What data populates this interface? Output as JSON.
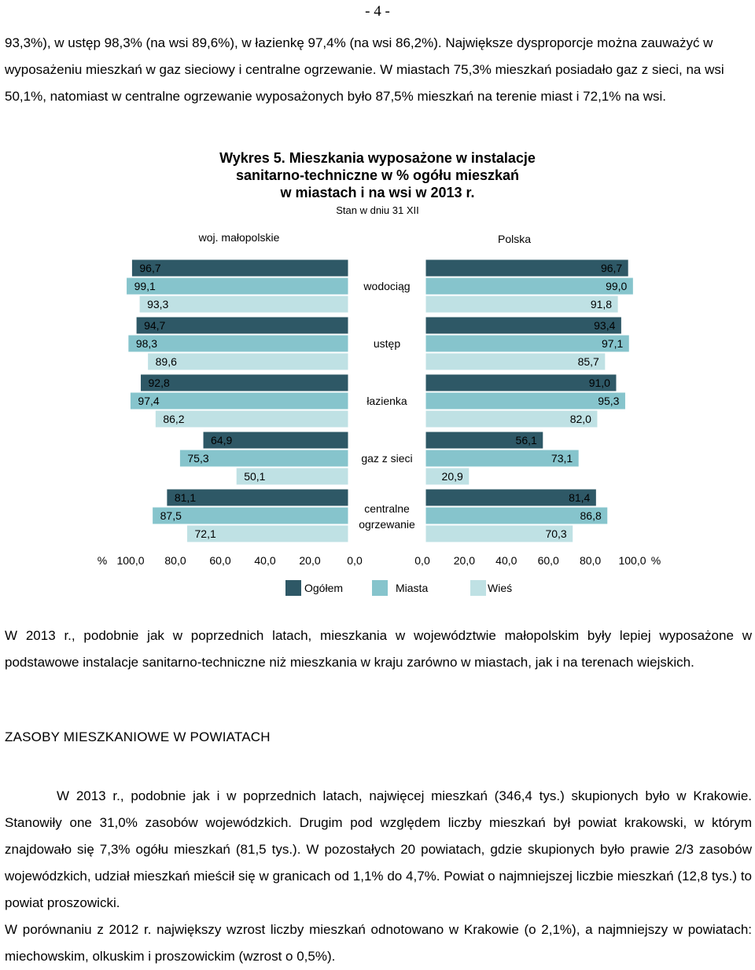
{
  "page_number": "- 4 -",
  "paragraph_1": "93,3%), w ustęp 98,3% (na wsi 89,6%), w łazienkę 97,4% (na wsi 86,2%). Największe dysproporcje można zauważyć w wyposażeniu mieszkań w gaz sieciowy i centralne ogrzewanie. W miastach 75,3% mieszkań posiadało gaz z sieci, na wsi 50,1%, natomiast w centralne ogrzewanie wyposażonych było 87,5% mieszkań na terenie miast i 72,1% na wsi.",
  "chart_data": {
    "type": "bar",
    "title_line_1": "Wykres 5. Mieszkania wyposażone w instalacje",
    "title_line_2": "sanitarno-techniczne w % ogółu mieszkań",
    "title_line_3": "w miastach i na wsi w 2013 r.",
    "subtitle": "Stan w dniu 31 XII",
    "panel_left_label": "woj. małopolskie",
    "panel_right_label": "Polska",
    "categories": [
      "wodociąg",
      "ustęp",
      "łazienka",
      "gaz z sieci",
      "centralne ogrzewanie"
    ],
    "left_series": [
      {
        "name": "Ogółem",
        "values": [
          96.7,
          94.7,
          92.8,
          64.9,
          81.1
        ],
        "labels": [
          "96,7",
          "94,7",
          "92,8",
          "64,9",
          "81,1"
        ]
      },
      {
        "name": "Miasta",
        "values": [
          99.1,
          98.3,
          97.4,
          75.3,
          87.5
        ],
        "labels": [
          "99,1",
          "98,3",
          "97,4",
          "75,3",
          "87,5"
        ]
      },
      {
        "name": "Wieś",
        "values": [
          93.3,
          89.6,
          86.2,
          50.1,
          72.1
        ],
        "labels": [
          "93,3",
          "89,6",
          "86,2",
          "50,1",
          "72,1"
        ]
      }
    ],
    "right_series": [
      {
        "name": "Ogółem",
        "values": [
          96.7,
          93.4,
          91.0,
          56.1,
          81.4
        ],
        "labels": [
          "96,7",
          "93,4",
          "91,0",
          "56,1",
          "81,4"
        ]
      },
      {
        "name": "Miasta",
        "values": [
          99.0,
          97.1,
          95.3,
          73.1,
          86.8
        ],
        "labels": [
          "99,0",
          "97,1",
          "95,3",
          "73,1",
          "86,8"
        ]
      },
      {
        "name": "Wieś",
        "values": [
          91.8,
          85.7,
          82.0,
          20.9,
          70.3
        ],
        "labels": [
          "91,8",
          "85,7",
          "82,0",
          "20,9",
          "70,3"
        ]
      }
    ],
    "left_axis_ticks": [
      "100,0",
      "80,0",
      "60,0",
      "40,0",
      "20,0",
      "0,0"
    ],
    "right_axis_ticks": [
      "0,0",
      "20,0",
      "40,0",
      "60,0",
      "80,0",
      "100,0"
    ],
    "axis_unit": "%",
    "xlim": [
      0,
      100
    ],
    "grid": false,
    "legend_placement": "bottom-center",
    "legend": [
      "Ogółem",
      "Miasta",
      "Wieś"
    ],
    "colors": {
      "Ogółem": "#2e5866",
      "Miasta": "#86c4cc",
      "Wieś": "#bfe1e4"
    }
  },
  "paragraph_2": "W 2013 r., podobnie jak w poprzednich latach, mieszkania w województwie małopolskim były lepiej wyposażone w podstawowe instalacje sanitarno-techniczne niż mieszkania w kraju zarówno w miastach, jak i na terenach wiejskich.",
  "heading": "ZASOBY MIESZKANIOWE W POWIATACH",
  "paragraph_3": "W 2013 r., podobnie jak i w poprzednich latach, najwięcej mieszkań (346,4 tys.) skupionych było w Krakowie. Stanowiły one 31,0% zasobów wojewódzkich. Drugim pod względem liczby mieszkań był powiat krakowski, w którym znajdowało się 7,3% ogółu mieszkań (81,5 tys.). W pozostałych 20 powiatach, gdzie skupionych było prawie 2/3 zasobów wojewódzkich, udział mieszkań mieścił się w granicach od 1,1% do 4,7%. Powiat o najmniejszej liczbie mieszkań (12,8 tys.) to powiat proszowicki.",
  "paragraph_4": "W porównaniu z 2012 r. największy wzrost liczby mieszkań odnotowano w Krakowie (o 2,1%), a najmniejszy w powiatach: miechowskim, olkuskim i proszowickim (wzrost o 0,5%)."
}
